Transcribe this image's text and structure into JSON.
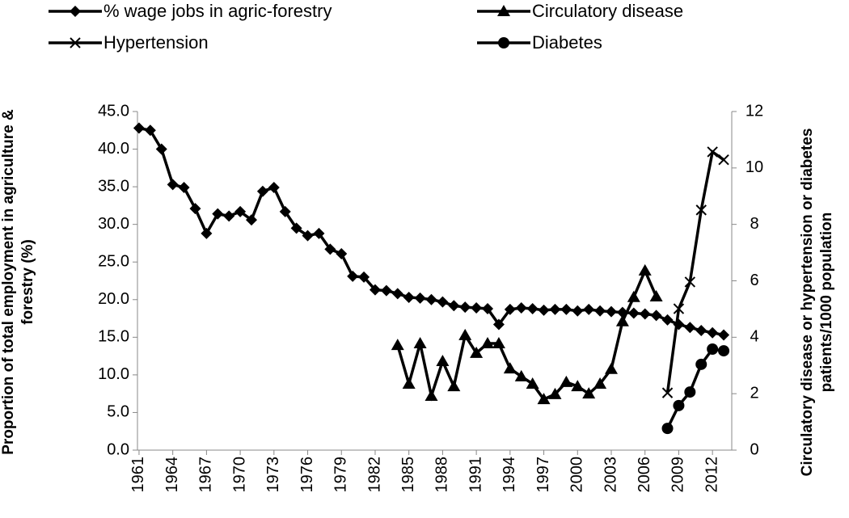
{
  "chart_data": {
    "type": "line",
    "x": [
      1961,
      1962,
      1963,
      1964,
      1965,
      1966,
      1967,
      1968,
      1969,
      1970,
      1971,
      1972,
      1973,
      1974,
      1975,
      1976,
      1977,
      1978,
      1979,
      1980,
      1981,
      1982,
      1983,
      1984,
      1985,
      1986,
      1987,
      1988,
      1989,
      1990,
      1991,
      1992,
      1993,
      1994,
      1995,
      1996,
      1997,
      1998,
      1999,
      2000,
      2001,
      2002,
      2003,
      2004,
      2005,
      2006,
      2007,
      2008,
      2009,
      2010,
      2011,
      2012,
      2013
    ],
    "xlim": [
      1960.5,
      2013.5
    ],
    "xticks": [
      1961,
      1964,
      1967,
      1970,
      1973,
      1976,
      1979,
      1982,
      1985,
      1988,
      1991,
      1994,
      1997,
      2000,
      2003,
      2006,
      2009,
      2012
    ],
    "ylabel": "Proportion of total employment in agriculture & forestry (%)",
    "y2label": "Circulatory disease or hypertension or diabetes patients/1000 population",
    "ylim": [
      0,
      45
    ],
    "yticks": [
      {
        "value": 0,
        "label": "0.0"
      },
      {
        "value": 5,
        "label": "5.0"
      },
      {
        "value": 10,
        "label": "10.0"
      },
      {
        "value": 15,
        "label": "15.0"
      },
      {
        "value": 20,
        "label": "20.0"
      },
      {
        "value": 25,
        "label": "25.0"
      },
      {
        "value": 30,
        "label": "30.0"
      },
      {
        "value": 35,
        "label": "35.0"
      },
      {
        "value": 40,
        "label": "40.0"
      },
      {
        "value": 45,
        "label": "45.0"
      }
    ],
    "y2lim": [
      0,
      12
    ],
    "y2ticks": [
      0,
      2,
      4,
      6,
      8,
      10,
      12
    ],
    "series": [
      {
        "name": "% wage jobs in agric-forestry",
        "color": "#000000",
        "marker": "diamond",
        "values": [
          42.8,
          42.5,
          40.0,
          35.3,
          34.9,
          32.1,
          28.8,
          31.4,
          31.1,
          31.7,
          30.6,
          34.4,
          34.9,
          31.7,
          29.5,
          28.5,
          28.8,
          26.7,
          26.1,
          23.1,
          23.0,
          21.3,
          21.2,
          20.8,
          20.3,
          20.2,
          20.0,
          19.7,
          19.2,
          19.0,
          18.9,
          18.8,
          16.7,
          18.7,
          18.9,
          18.8,
          18.6,
          18.7,
          18.7,
          18.5,
          18.7,
          18.5,
          18.4,
          18.3,
          18.2,
          18.1,
          17.9,
          17.3,
          16.7,
          16.3,
          15.9,
          15.6,
          15.3
        ]
      },
      {
        "name": "Circulatory disease",
        "color": "#000000",
        "marker": "triangle",
        "axis": "y2",
        "values": [
          null,
          null,
          null,
          null,
          null,
          null,
          null,
          null,
          null,
          null,
          null,
          null,
          null,
          null,
          null,
          null,
          null,
          null,
          null,
          null,
          null,
          null,
          null,
          3.72,
          2.35,
          3.78,
          1.92,
          3.15,
          2.26,
          4.07,
          3.44,
          3.78,
          3.78,
          2.89,
          2.61,
          2.35,
          1.8,
          1.98,
          2.41,
          2.26,
          2.0,
          2.35,
          2.87,
          4.56,
          5.42,
          6.36,
          5.44,
          null,
          null,
          null,
          null,
          null,
          null
        ]
      },
      {
        "name": "Hypertension",
        "color": "#000000",
        "marker": "x",
        "axis": "y2",
        "values": [
          null,
          null,
          null,
          null,
          null,
          null,
          null,
          null,
          null,
          null,
          null,
          null,
          null,
          null,
          null,
          null,
          null,
          null,
          null,
          null,
          null,
          null,
          null,
          null,
          null,
          null,
          null,
          null,
          null,
          null,
          null,
          null,
          null,
          null,
          null,
          null,
          null,
          null,
          null,
          null,
          null,
          null,
          null,
          null,
          null,
          null,
          null,
          2.03,
          5.01,
          5.96,
          8.51,
          10.57,
          10.29
        ]
      },
      {
        "name": "Diabetes",
        "color": "#000000",
        "marker": "circle",
        "axis": "y2",
        "values": [
          null,
          null,
          null,
          null,
          null,
          null,
          null,
          null,
          null,
          null,
          null,
          null,
          null,
          null,
          null,
          null,
          null,
          null,
          null,
          null,
          null,
          null,
          null,
          null,
          null,
          null,
          null,
          null,
          null,
          null,
          null,
          null,
          null,
          null,
          null,
          null,
          null,
          null,
          null,
          null,
          null,
          null,
          null,
          null,
          null,
          null,
          null,
          0.77,
          1.58,
          2.06,
          3.04,
          3.58,
          3.52
        ]
      }
    ]
  }
}
